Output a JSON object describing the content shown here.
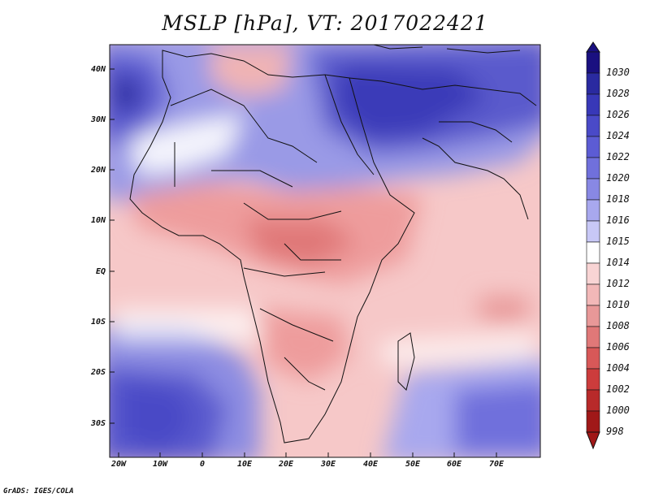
{
  "title": "MSLP [hPa], VT: 2017022421",
  "y_axis_labels": [
    "40N",
    "30N",
    "20N",
    "10N",
    "EQ",
    "10S",
    "20S",
    "30S"
  ],
  "x_axis_labels": [
    "20W",
    "10W",
    "0",
    "10E",
    "20E",
    "30E",
    "40E",
    "50E",
    "60E",
    "70E"
  ],
  "colorbar": {
    "labels": [
      "1030",
      "1028",
      "1026",
      "1024",
      "1022",
      "1020",
      "1018",
      "1016",
      "1015",
      "1014",
      "1012",
      "1010",
      "1008",
      "1006",
      "1004",
      "1002",
      "1000",
      "998"
    ],
    "colors": [
      "#1a1080",
      "#2a2aa0",
      "#3838b8",
      "#4a4ac8",
      "#5c5cd4",
      "#7070dc",
      "#8888e4",
      "#a8a8ee",
      "#c8c8f6",
      "#ffffff",
      "#f8d4d4",
      "#f2b8b8",
      "#e89898",
      "#e07878",
      "#d85858",
      "#cc3c3c",
      "#b82a2a",
      "#a01818"
    ]
  },
  "credit": "GrADS: IGES/COLA"
}
